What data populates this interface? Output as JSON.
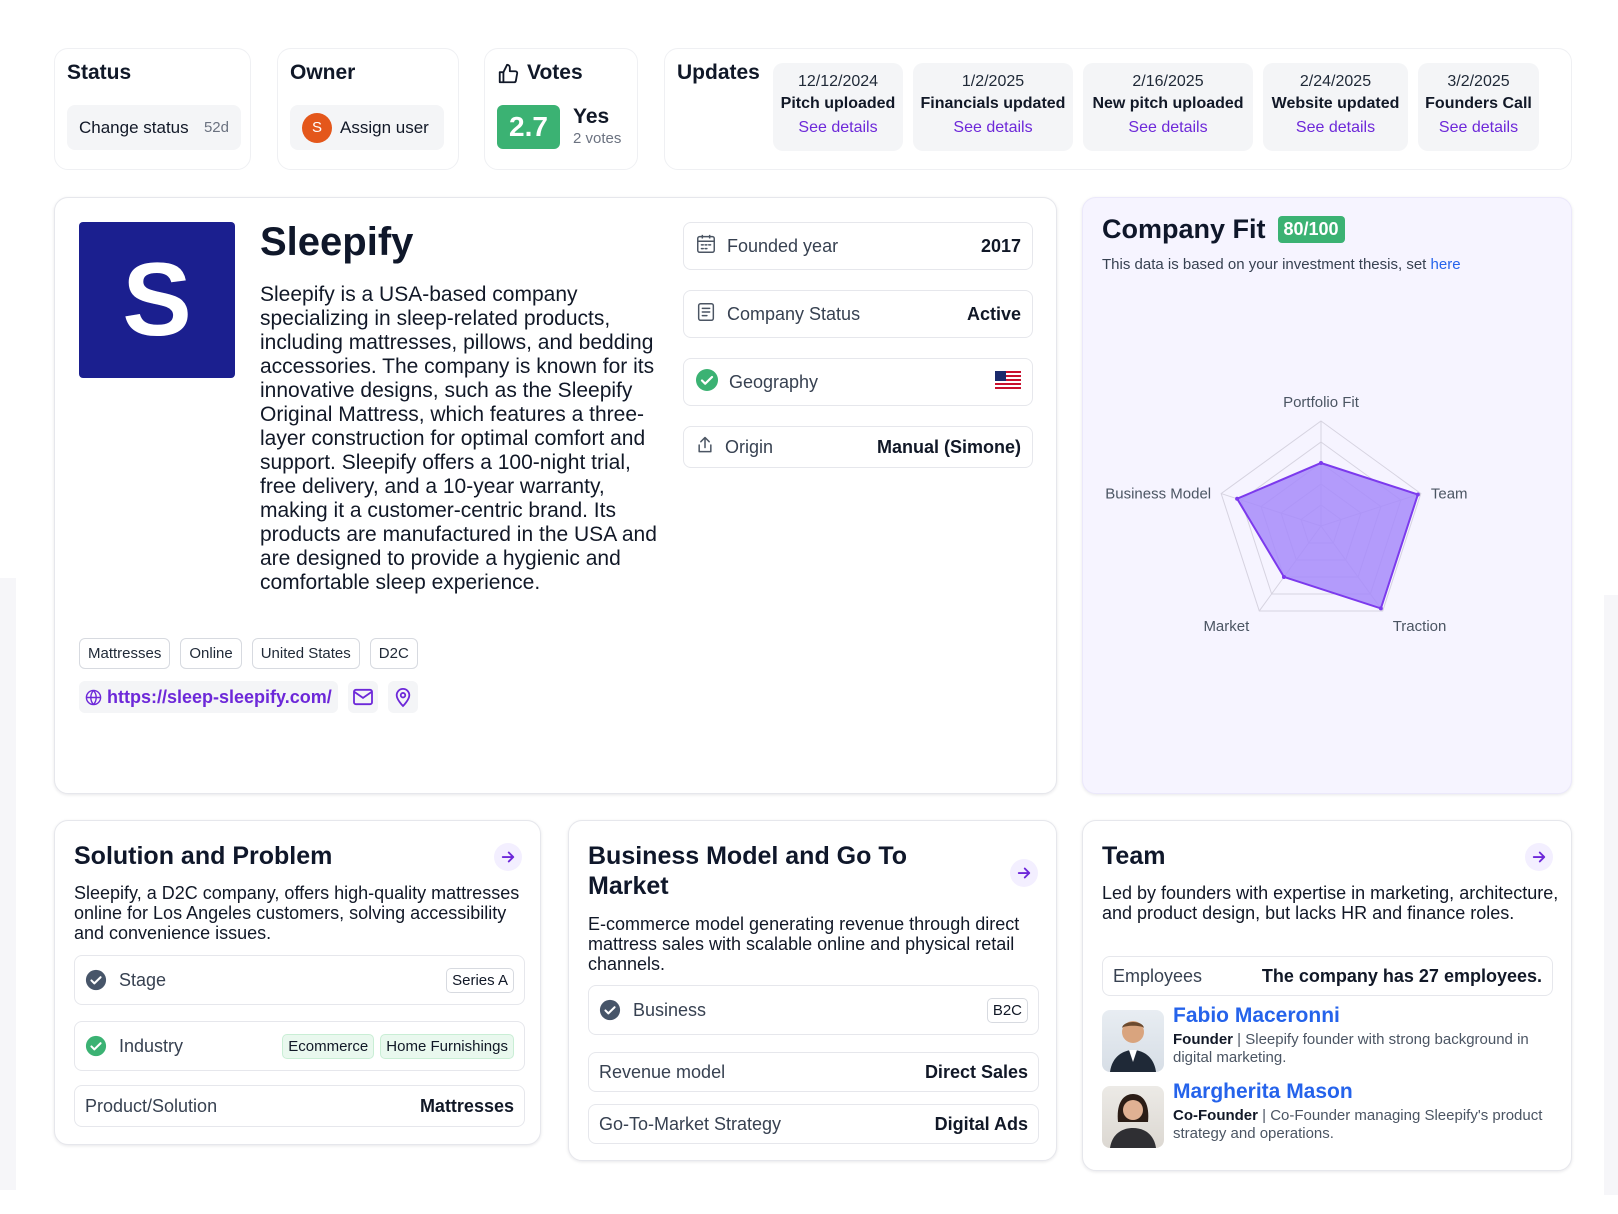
{
  "status": {
    "title": "Status",
    "button": "Change status",
    "age": "52d"
  },
  "owner": {
    "title": "Owner",
    "avatar_letter": "S",
    "button": "Assign user"
  },
  "votes": {
    "title": "Votes",
    "score": "2.7",
    "answer": "Yes",
    "count": "2 votes"
  },
  "updates": {
    "title": "Updates",
    "items": [
      {
        "date": "12/12/2024",
        "title": "Pitch uploaded",
        "link": "See details"
      },
      {
        "date": "1/2/2025",
        "title": "Financials updated",
        "link": "See details"
      },
      {
        "date": "2/16/2025",
        "title": "New pitch uploaded",
        "link": "See details"
      },
      {
        "date": "2/24/2025",
        "title": "Website updated",
        "link": "See details"
      },
      {
        "date": "3/2/2025",
        "title": "Founders Call",
        "link": "See details"
      }
    ]
  },
  "company": {
    "logo_letter": "S",
    "name": "Sleepify",
    "description": "Sleepify is a USA-based company specializing in sleep-related products, including mattresses, pillows, and bedding accessories. The company is known for its innovative designs, such as the Sleepify Original Mattress, which features a three-layer construction for optimal comfort and support. Sleepify offers a 100-night trial, free delivery, and a 10-year warranty, making it a customer-centric brand. Its products are manufactured in the USA and are designed to provide a hygienic and comfortable sleep experience.",
    "tags": [
      "Mattresses",
      "Online",
      "United States",
      "D2C"
    ],
    "website": "https://sleep-sleepify.com/",
    "attributes": {
      "founded": {
        "label": "Founded year",
        "value": "2017"
      },
      "status": {
        "label": "Company Status",
        "value": "Active"
      },
      "geography": {
        "label": "Geography"
      },
      "origin": {
        "label": "Origin",
        "value": "Manual (Simone)"
      }
    }
  },
  "fit": {
    "title": "Company Fit",
    "score": "80/100",
    "note": "This data is based on your investment thesis, set",
    "note_link": "here",
    "axes": [
      "Portfolio Fit",
      "Team",
      "Traction",
      "Market",
      "Business Model"
    ],
    "values": [
      0.6,
      0.97,
      0.97,
      0.6,
      0.84
    ],
    "fill_color": "#a78bfa",
    "stroke_color": "#7c3aed"
  },
  "solution": {
    "title": "Solution and Problem",
    "summary": "Sleepify, a D2C company, offers high-quality mattresses online for Los Angeles customers, solving accessibility and convenience issues.",
    "stage": {
      "label": "Stage",
      "value": "Series A"
    },
    "industry": {
      "label": "Industry",
      "values": [
        "Ecommerce",
        "Home Furnishings"
      ]
    },
    "product": {
      "label": "Product/Solution",
      "value": "Mattresses"
    }
  },
  "business": {
    "title": "Business Model and Go To Market",
    "summary": "E-commerce model generating revenue through direct mattress sales with scalable online and physical retail channels.",
    "business": {
      "label": "Business",
      "value": "B2C"
    },
    "revenue": {
      "label": "Revenue model",
      "value": "Direct Sales"
    },
    "gtm": {
      "label": "Go-To-Market Strategy",
      "value": "Digital Ads"
    }
  },
  "team": {
    "title": "Team",
    "summary": "Led by founders with expertise in marketing, architecture, and product design, but lacks HR and finance roles.",
    "employees": {
      "label": "Employees",
      "value": "The company has 27 employees."
    },
    "members": [
      {
        "name": "Fabio Maceronni",
        "role": "Founder",
        "bio": "Sleepify founder with strong background in digital marketing."
      },
      {
        "name": "Margherita Mason",
        "role": "Co-Founder",
        "bio": "Co-Founder managing Sleepify's product strategy and operations."
      }
    ]
  },
  "colors": {
    "accent": "#6d28d9",
    "green": "#3bb273",
    "brand_navy": "#1b1f8f"
  }
}
